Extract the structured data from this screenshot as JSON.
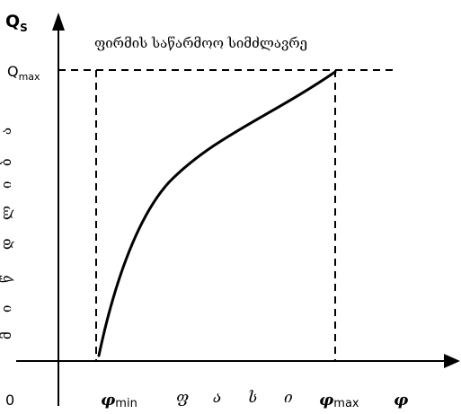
{
  "title": "ფირმის საწარმოო სიმძლავრე",
  "y_axis": {
    "label_main": "Q",
    "label_sub": "S",
    "max_main": "Q",
    "max_sub": "max",
    "vertical_letters": [
      "ა",
      "ბ",
      "ი",
      "ლ",
      "დ",
      "წ",
      "ი",
      "მ"
    ]
  },
  "x_axis": {
    "origin": "0",
    "phi_symbol": "φ",
    "min_sub": "min",
    "max_sub": "max",
    "middle_word": [
      "ფ",
      "ა",
      "ს",
      "ი"
    ]
  }
}
